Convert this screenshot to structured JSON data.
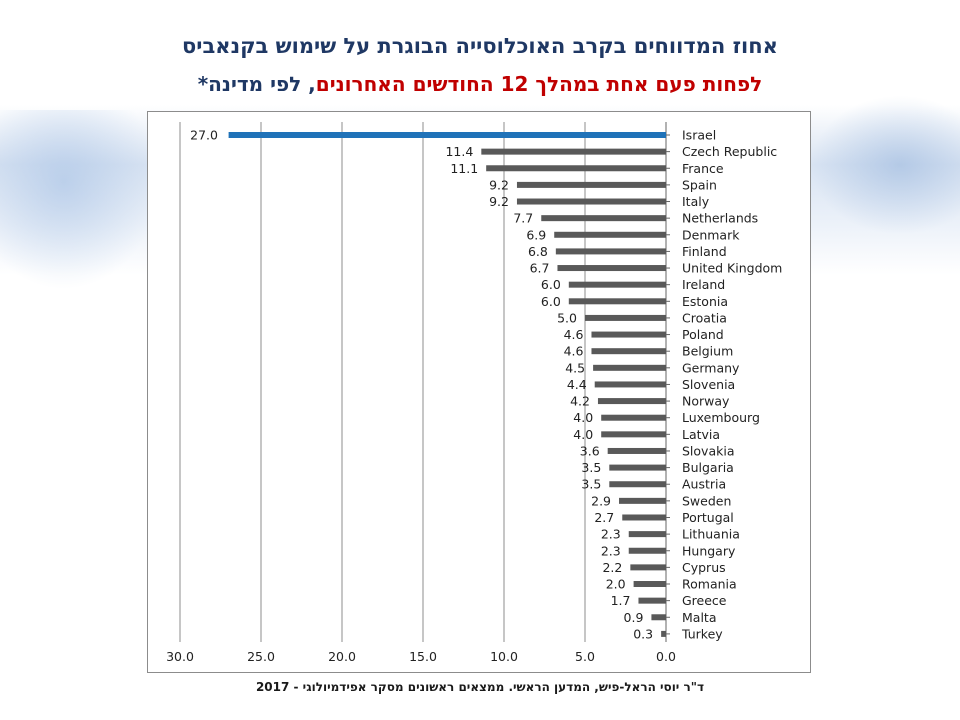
{
  "title": {
    "line1": "אחוז המדווחים בקרב האוכלוסייה הבוגרת על שימוש בקנאביס",
    "line2_red": "לפחות פעם אחת במהלך 12 החודשים האחרונים",
    "line2_comma": ", ",
    "line2_navy": "לפי מדינה*"
  },
  "footer": "ד\"ר יוסי הראל-פיש, המדען הראשי. ממצאים ראשונים מסקר אפידמיולוגי - 2017",
  "colors": {
    "highlight": "#1f72b8",
    "bar": "#595959",
    "title_navy": "#1f3864",
    "title_red": "#c00000"
  },
  "chart_data": {
    "type": "bar",
    "orientation": "horizontal",
    "x_direction": "reversed",
    "categories": [
      "Israel",
      "Czech Republic",
      "France",
      "Spain",
      "Italy",
      "Netherlands",
      "Denmark",
      "Finland",
      "United Kingdom",
      "Ireland",
      "Estonia",
      "Croatia",
      "Poland",
      "Belgium",
      "Germany",
      "Slovenia",
      "Norway",
      "Luxembourg",
      "Latvia",
      "Slovakia",
      "Bulgaria",
      "Austria",
      "Sweden",
      "Portugal",
      "Lithuania",
      "Hungary",
      "Cyprus",
      "Romania",
      "Greece",
      "Malta",
      "Turkey"
    ],
    "values": [
      27.0,
      11.4,
      11.1,
      9.2,
      9.2,
      7.7,
      6.9,
      6.8,
      6.7,
      6.0,
      6.0,
      5.0,
      4.6,
      4.6,
      4.5,
      4.4,
      4.2,
      4.0,
      4.0,
      3.6,
      3.5,
      3.5,
      2.9,
      2.7,
      2.3,
      2.3,
      2.2,
      2.0,
      1.7,
      0.9,
      0.3
    ],
    "value_labels": [
      "27.0",
      "11.4",
      "11.1",
      "9.2",
      "9.2",
      "7.7",
      "6.9",
      "6.8",
      "6.7",
      "6.0",
      "6.0",
      "5.0",
      "4.6",
      "4.6",
      "4.5",
      "4.4",
      "4.2",
      "4.0",
      "4.0",
      "3.6",
      "3.5",
      "3.5",
      "2.9",
      "2.7",
      "2.3",
      "2.3",
      "2.2",
      "2.0",
      "1.7",
      "0.9",
      "0.3"
    ],
    "highlight_category": "Israel",
    "xlim": [
      0,
      30
    ],
    "xticks": [
      "30.0",
      "25.0",
      "20.0",
      "15.0",
      "10.0",
      "5.0",
      "0.0"
    ],
    "xtick_values": [
      30,
      25,
      20,
      15,
      10,
      5,
      0
    ],
    "grid": "vertical",
    "title": "",
    "xlabel": "",
    "ylabel": ""
  }
}
